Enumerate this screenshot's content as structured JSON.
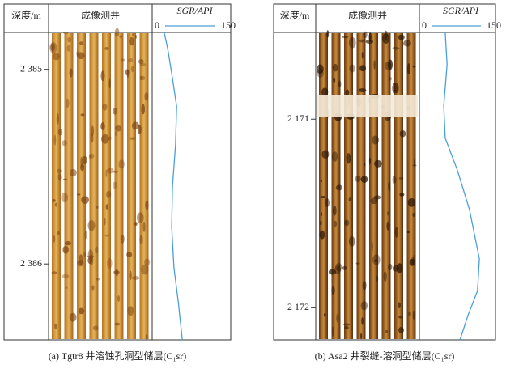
{
  "chart_data": [
    {
      "type": "line",
      "caption": "(a) Tgtr8 井溶蚀孔洞型储层(C₁sr)",
      "depth_label": "深度/m",
      "image_label": "成像测井",
      "x_label": "SGR/API",
      "xlim": [
        0,
        150
      ],
      "xticks": [
        0,
        150
      ],
      "ylim": [
        2384.81,
        2386.39
      ],
      "y_inverted": true,
      "yticks": [
        {
          "value": 2385,
          "label": "2 385"
        },
        {
          "value": 2386,
          "label": "2 386"
        }
      ],
      "series": [
        {
          "color": "#4a9fd8",
          "x": [
            6,
            15,
            26,
            39,
            36,
            28,
            26,
            32,
            43,
            54
          ],
          "values": [
            2384.81,
            2384.89,
            2385.02,
            2385.19,
            2385.39,
            2385.6,
            2385.81,
            2386.02,
            2386.19,
            2386.39
          ]
        }
      ]
    },
    {
      "type": "line",
      "caption": "(b) Asa2 井裂缝-溶洞型储层(C₁sr)",
      "depth_label": "深度/m",
      "image_label": "成像测井",
      "x_label": "SGR/API",
      "xlim": [
        0,
        150
      ],
      "xticks": [
        0,
        150
      ],
      "ylim": [
        2170.54,
        2172.17
      ],
      "y_inverted": true,
      "yticks": [
        {
          "value": 2171,
          "label": "2 171"
        },
        {
          "value": 2172,
          "label": "2 172"
        }
      ],
      "series": [
        {
          "color": "#4a9fd8",
          "x": [
            44,
            49,
            40,
            44,
            77,
            110,
            137,
            132,
            106,
            84
          ],
          "values": [
            2170.54,
            2170.71,
            2170.93,
            2171.1,
            2171.27,
            2171.48,
            2171.74,
            2171.91,
            2172.04,
            2172.17
          ]
        }
      ]
    }
  ]
}
